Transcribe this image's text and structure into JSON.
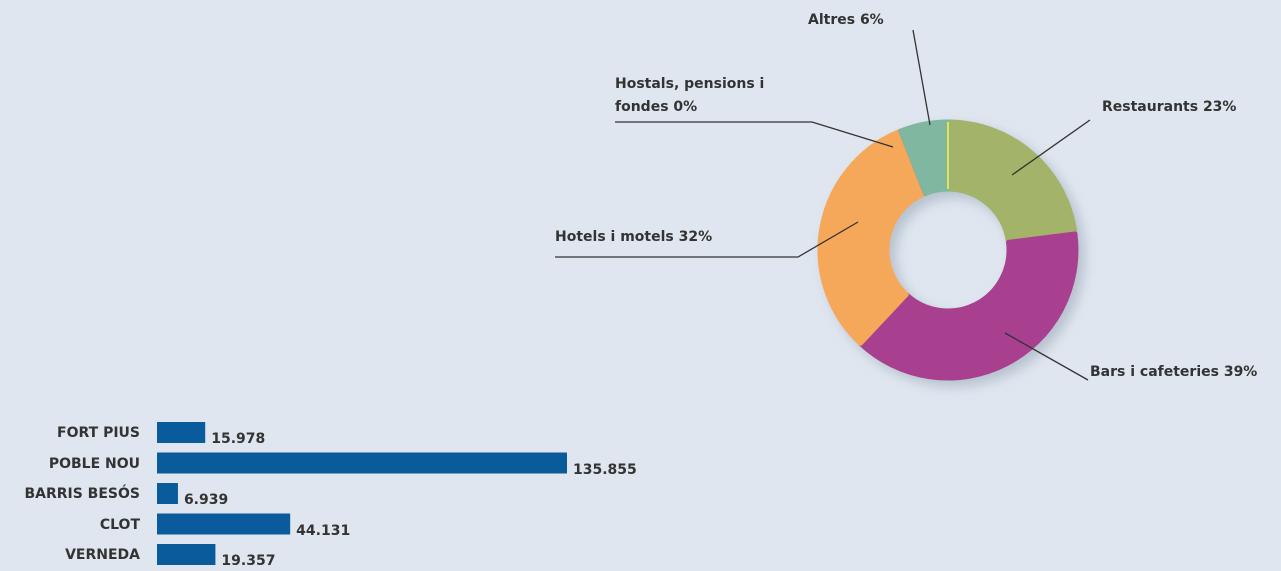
{
  "chart_data": [
    {
      "type": "donut",
      "categories": [
        "Restaurants",
        "Bars i cafeteries",
        "Hotels i motels",
        "Hostals, pensions i fondes",
        "Altres"
      ],
      "values": [
        23,
        39,
        32,
        0,
        6
      ],
      "value_labels": [
        "23%",
        "39%",
        "32%",
        "0%",
        "6%"
      ],
      "colors": [
        "#a3b36a",
        "#a8418f",
        "#f6a85a",
        "#e0407a",
        "#7fb7a0"
      ]
    },
    {
      "type": "hbar",
      "categories": [
        "FORT PIUS",
        "POBLE NOU",
        "BARRIS BESÓS",
        "CLOT",
        "VERNEDA"
      ],
      "values": [
        15978,
        135855,
        6939,
        44131,
        19357
      ],
      "value_labels": [
        "15.978",
        "135.855",
        "6.939",
        "44.131",
        "19.357"
      ],
      "color": "#0a5b9c"
    }
  ]
}
